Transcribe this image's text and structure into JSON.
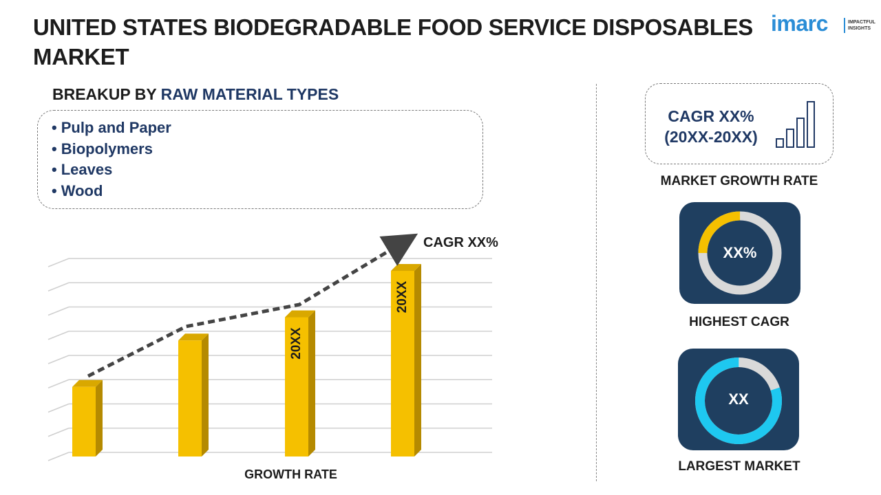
{
  "header": {
    "title_line1": "UNITED STATES BIODEGRADABLE FOOD SERVICE DISPOSABLES",
    "title_line2": "MARKET"
  },
  "logo": {
    "text": "imarc",
    "tagline_line1": "IMPACTFUL",
    "tagline_line2": "INSIGHTS",
    "color": "#2a8dd6"
  },
  "breakup": {
    "prefix": "BREAKUP BY ",
    "highlight": "RAW MATERIAL TYPES",
    "items": [
      "Pulp and Paper",
      "Biopolymers",
      "Leaves",
      "Wood"
    ]
  },
  "chart": {
    "xlabel": "GROWTH RATE",
    "trend_label": "CAGR XX%",
    "bar_labels": [
      "",
      "",
      "20XX",
      "20XX"
    ],
    "bar_values": [
      3,
      5,
      6,
      8
    ],
    "bar_color": "#f5c000"
  },
  "sidebar": {
    "cagr_line1": "CAGR XX%",
    "cagr_line2": "(20XX-20XX)",
    "market_growth_caption": "MARKET GROWTH RATE",
    "highest_cagr_value": "XX%",
    "highest_cagr_caption": "HIGHEST CAGR",
    "largest_market_value": "XX",
    "largest_market_caption": "LARGEST MARKET"
  },
  "colors": {
    "navy": "#1f3864",
    "tile": "#1f3f60",
    "yellow": "#f5c000",
    "cyan": "#1ec8f0",
    "grey": "#d9d9d9"
  }
}
